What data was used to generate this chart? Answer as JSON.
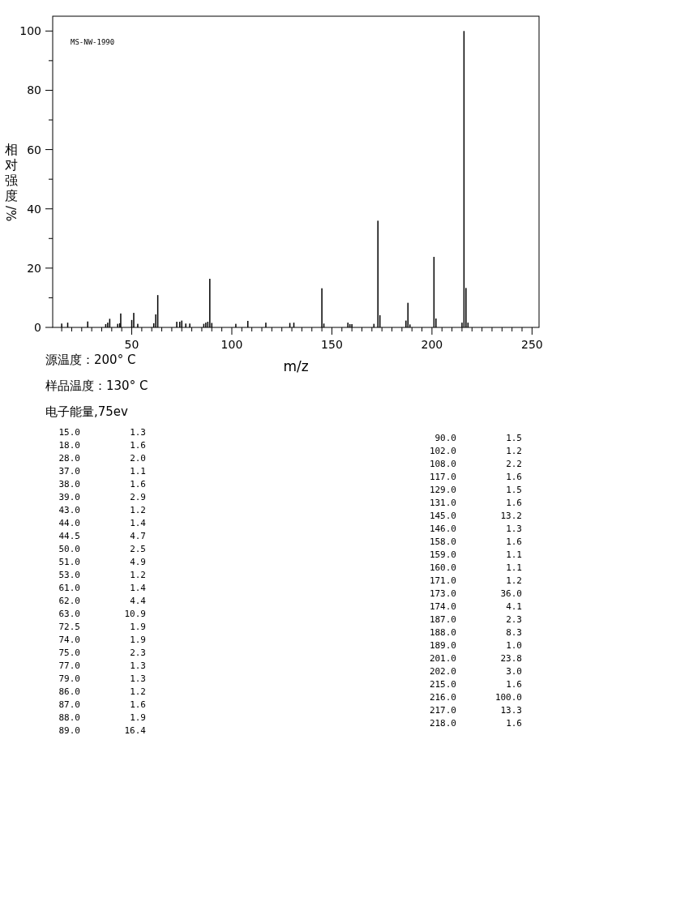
{
  "chart_data": [
    {
      "type": "bar",
      "xlabel": "m/z",
      "ylabel": "相对强度/%",
      "x": [
        15,
        18,
        28,
        37,
        38,
        39,
        43,
        44,
        44.5,
        50,
        51,
        53,
        61,
        62,
        63,
        72.5,
        74,
        75,
        77,
        79,
        86,
        87,
        88,
        89,
        90,
        102,
        108,
        117,
        129,
        131,
        145,
        146,
        158,
        159,
        160,
        171,
        173,
        174,
        187,
        188,
        189,
        201,
        202,
        215,
        216,
        217,
        218
      ],
      "values": [
        1.3,
        1.6,
        2.0,
        1.1,
        1.6,
        2.9,
        1.2,
        1.4,
        4.7,
        2.5,
        4.9,
        1.2,
        1.4,
        4.4,
        10.9,
        1.9,
        1.9,
        2.3,
        1.3,
        1.3,
        1.2,
        1.6,
        1.9,
        16.4,
        1.5,
        1.2,
        2.2,
        1.6,
        1.5,
        1.6,
        13.2,
        1.3,
        1.6,
        1.1,
        1.1,
        1.2,
        36.0,
        4.1,
        2.3,
        8.3,
        1.0,
        23.8,
        3.0,
        1.6,
        100.0,
        13.3,
        1.6
      ],
      "color": "#000000",
      "xlim": [
        10.5,
        253.5
      ],
      "ylim": [
        0,
        105
      ],
      "xticks": [
        {
          "value": 15,
          "label": null
        },
        {
          "value": 20,
          "label": null
        },
        {
          "value": 25,
          "label": null
        },
        {
          "value": 30,
          "label": null
        },
        {
          "value": 35,
          "label": null
        },
        {
          "value": 40,
          "label": null
        },
        {
          "value": 45,
          "label": null
        },
        50,
        {
          "value": 55,
          "label": null
        },
        {
          "value": 60,
          "label": null
        },
        {
          "value": 65,
          "label": null
        },
        {
          "value": 70,
          "label": null
        },
        {
          "value": 75,
          "label": null
        },
        {
          "value": 80,
          "label": null
        },
        {
          "value": 85,
          "label": null
        },
        {
          "value": 90,
          "label": null
        },
        {
          "value": 95,
          "label": null
        },
        100,
        {
          "value": 105,
          "label": null
        },
        {
          "value": 110,
          "label": null
        },
        {
          "value": 115,
          "label": null
        },
        {
          "value": 120,
          "label": null
        },
        {
          "value": 125,
          "label": null
        },
        {
          "value": 130,
          "label": null
        },
        {
          "value": 135,
          "label": null
        },
        {
          "value": 140,
          "label": null
        },
        {
          "value": 145,
          "label": null
        },
        150,
        {
          "value": 155,
          "label": null
        },
        {
          "value": 160,
          "label": null
        },
        {
          "value": 165,
          "label": null
        },
        {
          "value": 170,
          "label": null
        },
        {
          "value": 175,
          "label": null
        },
        {
          "value": 180,
          "label": null
        },
        {
          "value": 185,
          "label": null
        },
        {
          "value": 190,
          "label": null
        },
        {
          "value": 195,
          "label": null
        },
        200,
        {
          "value": 205,
          "label": null
        },
        {
          "value": 210,
          "label": null
        },
        {
          "value": 215,
          "label": null
        },
        {
          "value": 220,
          "label": null
        },
        {
          "value": 225,
          "label": null
        },
        {
          "value": 230,
          "label": null
        },
        {
          "value": 235,
          "label": null
        },
        {
          "value": 240,
          "label": null
        },
        {
          "value": 245,
          "label": null
        },
        250
      ],
      "yticks": [
        0,
        {
          "value": 10,
          "label": null
        },
        20,
        {
          "value": 30,
          "label": null
        },
        40,
        {
          "value": 50,
          "label": null
        },
        60,
        {
          "value": 70,
          "label": null
        },
        80,
        {
          "value": 90,
          "label": null
        },
        100
      ],
      "annotations": [
        "MS-NW-1990",
        "源温度：200° C",
        "样品温度：130° C",
        "电子能量,75ev"
      ]
    },
    {
      "type": "other",
      "annotations": [
        "15.0",
        "1.3",
        "18.0",
        "1.6",
        "28.0",
        "2.0",
        "37.0",
        "1.1",
        "38.0",
        "1.6",
        "39.0",
        "2.9",
        "43.0",
        "1.2",
        "44.0",
        "1.4",
        "44.5",
        "4.7",
        "50.0",
        "2.5",
        "51.0",
        "4.9",
        "53.0",
        "1.2",
        "61.0",
        "1.4",
        "62.0",
        "4.4",
        "63.0",
        "10.9",
        "72.5",
        "1.9",
        "74.0",
        "1.9",
        "75.0",
        "2.3",
        "77.0",
        "1.3",
        "79.0",
        "1.3",
        "86.0",
        "1.2",
        "87.0",
        "1.6",
        "88.0",
        "1.9",
        "89.0",
        "16.4",
        "90.0",
        "1.5",
        "102.0",
        "1.2",
        "108.0",
        "2.2",
        "117.0",
        "1.6",
        "129.0",
        "1.5",
        "131.0",
        "1.6",
        "145.0",
        "13.2",
        "146.0",
        "1.3",
        "158.0",
        "1.6",
        "159.0",
        "1.1",
        "160.0",
        "1.1",
        "171.0",
        "1.2",
        "173.0",
        "36.0",
        "174.0",
        "4.1",
        "187.0",
        "2.3",
        "188.0",
        "8.3",
        "189.0",
        "1.0",
        "201.0",
        "23.8",
        "202.0",
        "3.0",
        "215.0",
        "1.6",
        "216.0",
        "100.0",
        "217.0",
        "13.3",
        "218.0",
        "1.6"
      ]
    }
  ]
}
